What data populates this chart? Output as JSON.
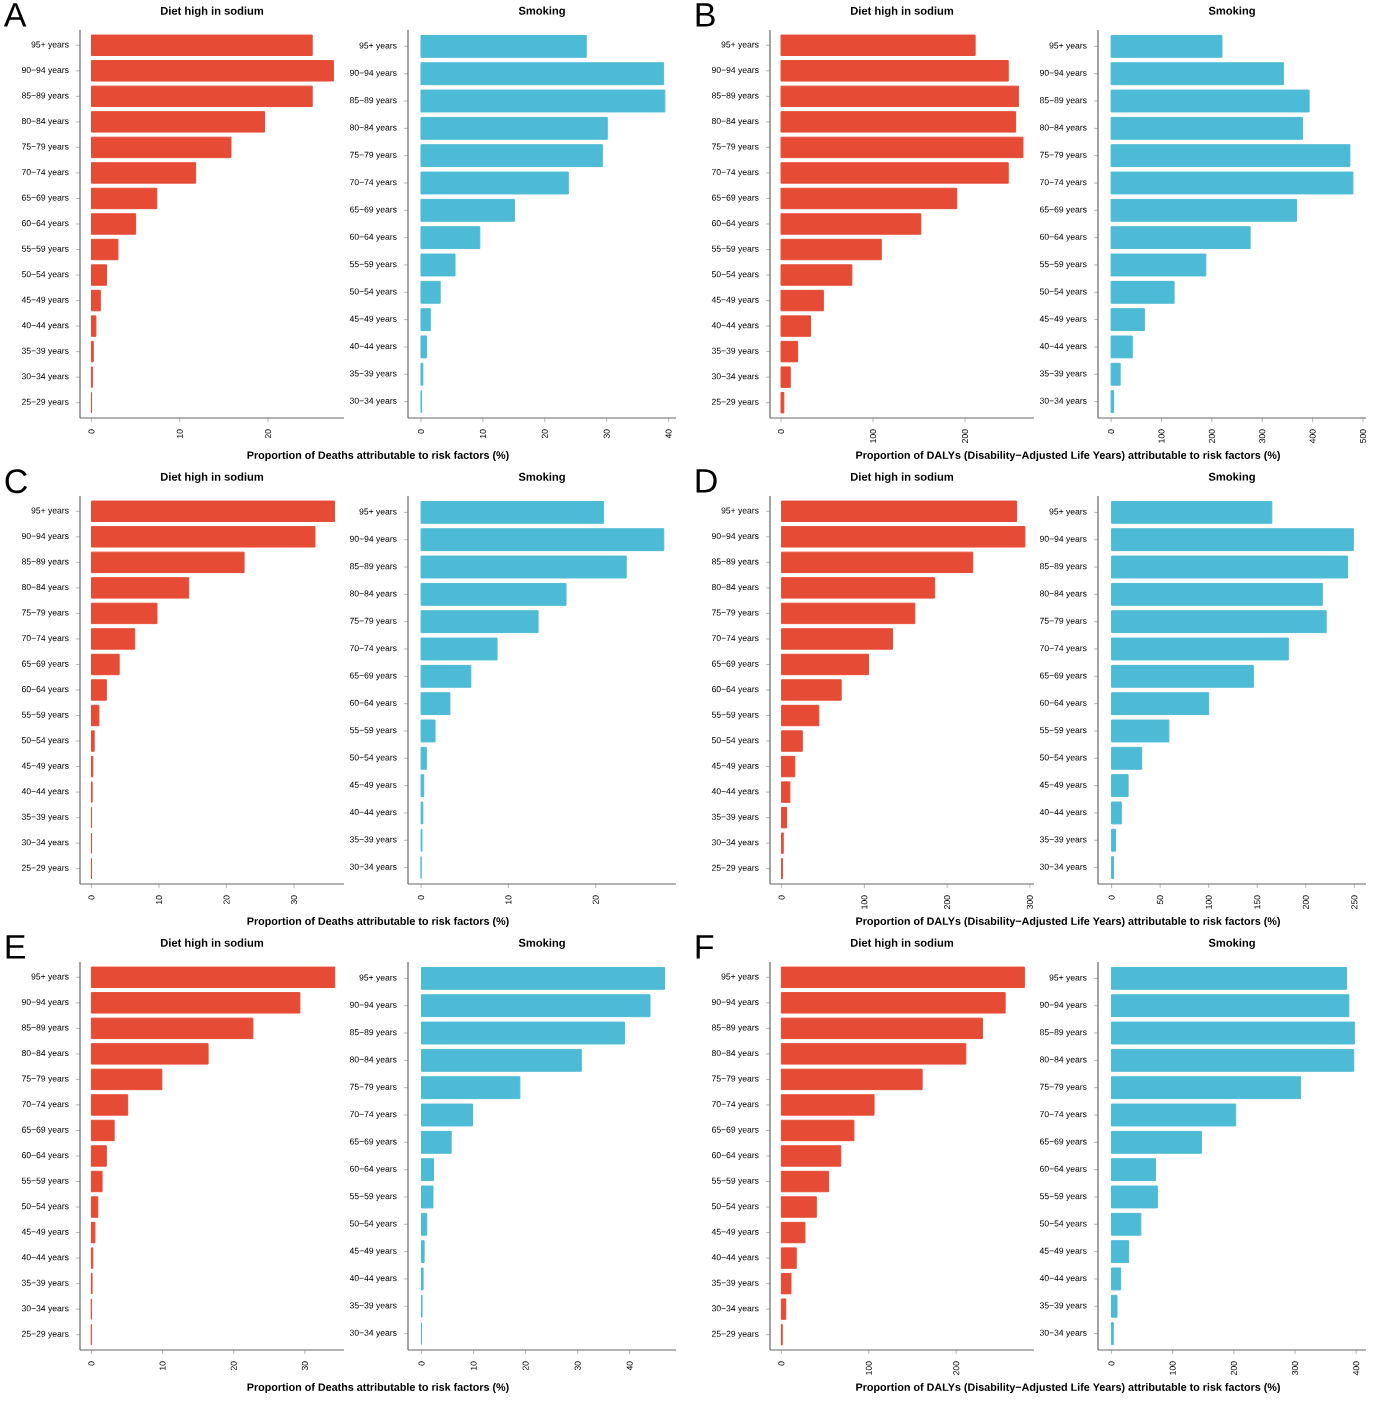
{
  "chart_data": [
    {
      "type": "bar",
      "orientation": "horizontal",
      "title": "Diet high in sodium",
      "annotations": [
        "A"
      ],
      "xlabel": "Proportion of Deaths attributable to risk factors (%)",
      "color": "#e64b35",
      "categories": [
        "95+ years",
        "90−94 years",
        "85−89 years",
        "80−84 years",
        "75−79 years",
        "70−74 years",
        "65−69 years",
        "60−64 years",
        "55−59 years",
        "50−54 years",
        "45−49 years",
        "40−44 years",
        "35−39 years",
        "30−34 years",
        "25−29 years"
      ],
      "values": [
        25.0,
        27.4,
        25.0,
        19.6,
        15.8,
        11.8,
        7.4,
        5.0,
        3.0,
        1.7,
        1.0,
        0.5,
        0.2,
        0.1,
        0.0
      ],
      "xlim": [
        -1.3,
        28.6
      ],
      "xticks": [
        0,
        10,
        20
      ]
    },
    {
      "type": "bar",
      "orientation": "horizontal",
      "title": "Smoking",
      "color": "#4dbbd5",
      "categories": [
        "95+ years",
        "90−94 years",
        "85−89 years",
        "80−84 years",
        "75−79 years",
        "70−74 years",
        "65−69 years",
        "60−64 years",
        "55−59 years",
        "50−54 years",
        "45−49 years",
        "40−44 years",
        "35−39 years",
        "30−34 years"
      ],
      "values": [
        26.7,
        39.2,
        39.4,
        30.1,
        29.3,
        23.8,
        15.1,
        9.5,
        5.5,
        3.1,
        1.5,
        0.9,
        0.3,
        0.1
      ],
      "xlim": [
        -2.1,
        41.2
      ],
      "xticks": [
        0,
        10,
        20,
        30,
        40
      ]
    },
    {
      "type": "bar",
      "orientation": "horizontal",
      "title": "Diet high in sodium",
      "annotations": [
        "B"
      ],
      "xlabel": "Proportion of DALYs (Disability−Adjusted Life Years) attributable to risk factors (%)",
      "color": "#e64b35",
      "categories": [
        "95+ years",
        "90−94 years",
        "85−89 years",
        "80−84 years",
        "75−79 years",
        "70−74 years",
        "65−69 years",
        "60−64 years",
        "55−59 years",
        "50−54 years",
        "45−49 years",
        "40−44 years",
        "35−39 years",
        "30−34 years",
        "25−29 years"
      ],
      "values": [
        211,
        247,
        258,
        255,
        263,
        247,
        191,
        152,
        109,
        77,
        46,
        32,
        18,
        10,
        3
      ],
      "xlim": [
        -12,
        275
      ],
      "xticks": [
        0,
        100,
        200
      ]
    },
    {
      "type": "bar",
      "orientation": "horizontal",
      "title": "Smoking",
      "color": "#4dbbd5",
      "categories": [
        "95+ years",
        "90−94 years",
        "85−89 years",
        "80−84 years",
        "75−79 years",
        "70−74 years",
        "65−69 years",
        "60−64 years",
        "55−59 years",
        "50−54 years",
        "45−49 years",
        "40−44 years",
        "35−39 years",
        "30−34 years"
      ],
      "values": [
        220,
        342,
        393,
        380,
        474,
        480,
        368,
        276,
        188,
        125,
        66,
        42,
        18,
        5
      ],
      "xlim": [
        -26,
        506
      ],
      "xticks": [
        0,
        100,
        200,
        300,
        400,
        500
      ]
    },
    {
      "type": "bar",
      "orientation": "horizontal",
      "title": "Diet high in sodium",
      "annotations": [
        "C"
      ],
      "xlabel": "Proportion of Deaths attributable to risk factors (%)",
      "color": "#e64b35",
      "categories": [
        "95+ years",
        "90−94 years",
        "85−89 years",
        "80−84 years",
        "75−79 years",
        "70−74 years",
        "65−69 years",
        "60−64 years",
        "55−59 years",
        "50−54 years",
        "45−49 years",
        "40−44 years",
        "35−39 years",
        "30−34 years",
        "25−29 years"
      ],
      "values": [
        36.0,
        33.1,
        22.6,
        14.4,
        9.7,
        6.4,
        4.1,
        2.2,
        1.1,
        0.4,
        0.2,
        0.1,
        0.0,
        0.0,
        0.0
      ],
      "xlim": [
        -1.7,
        37.4
      ],
      "xticks": [
        0,
        10,
        20,
        30
      ]
    },
    {
      "type": "bar",
      "orientation": "horizontal",
      "title": "Smoking",
      "color": "#4dbbd5",
      "categories": [
        "95+ years",
        "90−94 years",
        "85−89 years",
        "80−84 years",
        "75−79 years",
        "70−74 years",
        "65−69 years",
        "60−64 years",
        "55−59 years",
        "50−54 years",
        "45−49 years",
        "40−44 years",
        "35−39 years",
        "30−34 years"
      ],
      "values": [
        20.9,
        27.8,
        23.5,
        16.6,
        13.4,
        8.7,
        5.7,
        3.3,
        1.6,
        0.6,
        0.3,
        0.2,
        0.1,
        0.0
      ],
      "xlim": [
        -1.5,
        29.2
      ],
      "xticks": [
        0,
        10,
        20
      ]
    },
    {
      "type": "bar",
      "orientation": "horizontal",
      "title": "Diet high in sodium",
      "annotations": [
        "D"
      ],
      "xlabel": "Proportion of DALYs (Disability−Adjusted Life Years) attributable to risk factors (%)",
      "color": "#e64b35",
      "categories": [
        "95+ years",
        "90−94 years",
        "85−89 years",
        "80−84 years",
        "75−79 years",
        "70−74 years",
        "65−69 years",
        "60−64 years",
        "55−59 years",
        "50−54 years",
        "45−49 years",
        "40−44 years",
        "35−39 years",
        "30−34 years",
        "25−29 years"
      ],
      "values": [
        284,
        294,
        231,
        185,
        161,
        134,
        105,
        72,
        45,
        25,
        16,
        10,
        6,
        2,
        1
      ],
      "xlim": [
        -14,
        305
      ],
      "xticks": [
        0,
        100,
        200,
        300
      ]
    },
    {
      "type": "bar",
      "orientation": "horizontal",
      "title": "Smoking",
      "color": "#4dbbd5",
      "categories": [
        "95+ years",
        "90−94 years",
        "85−89 years",
        "80−84 years",
        "75−79 years",
        "70−74 years",
        "65−69 years",
        "60−64 years",
        "55−59 years",
        "50−54 years",
        "45−49 years",
        "40−44 years",
        "35−39 years",
        "30−34 years"
      ],
      "values": [
        165,
        249,
        243,
        217,
        221,
        182,
        146,
        100,
        59,
        31,
        17,
        10,
        4,
        2
      ],
      "xlim": [
        -14,
        262
      ],
      "xticks": [
        0,
        50,
        100,
        150,
        200,
        250
      ]
    },
    {
      "type": "bar",
      "orientation": "horizontal",
      "title": "Diet high in sodium",
      "annotations": [
        "E"
      ],
      "xlabel": "Proportion of Deaths attributable to risk factors (%)",
      "color": "#e64b35",
      "categories": [
        "95+ years",
        "90−94 years",
        "85−89 years",
        "80−84 years",
        "75−79 years",
        "70−74 years",
        "65−69 years",
        "60−64 years",
        "55−59 years",
        "50−54 years",
        "45−49 years",
        "40−44 years",
        "35−39 years",
        "30−34 years",
        "25−29 years"
      ],
      "values": [
        34.2,
        29.3,
        22.7,
        16.4,
        9.9,
        5.1,
        3.2,
        2.1,
        1.5,
        0.9,
        0.5,
        0.2,
        0.1,
        0.0,
        0.0
      ],
      "xlim": [
        -1.6,
        35.5
      ],
      "xticks": [
        0,
        10,
        20,
        30
      ]
    },
    {
      "type": "bar",
      "orientation": "horizontal",
      "title": "Smoking",
      "color": "#4dbbd5",
      "categories": [
        "95+ years",
        "90−94 years",
        "85−89 years",
        "80−84 years",
        "75−79 years",
        "70−74 years",
        "65−69 years",
        "60−64 years",
        "55−59 years",
        "50−54 years",
        "45−49 years",
        "40−44 years",
        "35−39 years",
        "30−34 years"
      ],
      "values": [
        46.7,
        43.9,
        39.0,
        30.7,
        18.9,
        9.8,
        5.7,
        2.3,
        2.2,
        1.0,
        0.5,
        0.3,
        0.1,
        0.0
      ],
      "xlim": [
        -2.6,
        48.9
      ],
      "xticks": [
        0,
        10,
        20,
        30,
        40
      ]
    },
    {
      "type": "bar",
      "orientation": "horizontal",
      "title": "Diet high in sodium",
      "annotations": [
        "F"
      ],
      "xlabel": "Proportion of DALYs (Disability−Adjusted Life Years) attributable to risk factors (%)",
      "color": "#e64b35",
      "categories": [
        "95+ years",
        "90−94 years",
        "85−89 years",
        "80−84 years",
        "75−79 years",
        "70−74 years",
        "65−69 years",
        "60−64 years",
        "55−59 years",
        "50−54 years",
        "45−49 years",
        "40−44 years",
        "35−39 years",
        "30−34 years",
        "25−29 years"
      ],
      "values": [
        278,
        256,
        230,
        211,
        161,
        106,
        83,
        68,
        54,
        40,
        27,
        17,
        11,
        5,
        1
      ],
      "xlim": [
        -13,
        289
      ],
      "xticks": [
        0,
        100,
        200
      ]
    },
    {
      "type": "bar",
      "orientation": "horizontal",
      "title": "Smoking",
      "color": "#4dbbd5",
      "categories": [
        "95+ years",
        "90−94 years",
        "85−89 years",
        "80−84 years",
        "75−79 years",
        "70−74 years",
        "65−69 years",
        "60−64 years",
        "55−59 years",
        "50−54 years",
        "45−49 years",
        "40−44 years",
        "35−39 years",
        "30−34 years"
      ],
      "values": [
        384,
        388,
        397,
        396,
        309,
        203,
        147,
        72,
        75,
        48,
        28,
        15,
        9,
        3
      ],
      "xlim": [
        -22,
        416
      ],
      "xticks": [
        0,
        100,
        200,
        300,
        400
      ]
    }
  ]
}
